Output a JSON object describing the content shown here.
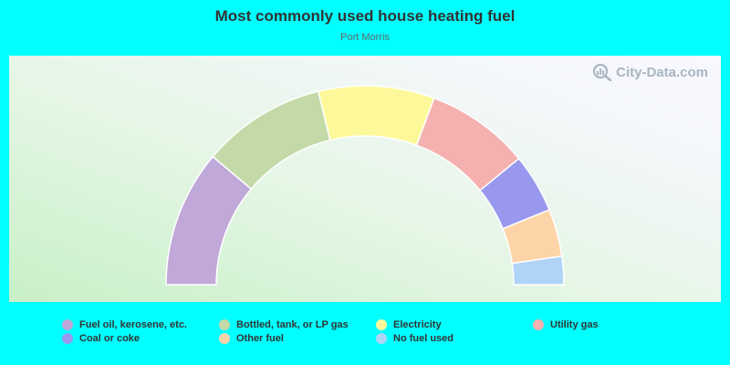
{
  "chart_data": {
    "type": "pie",
    "title": "Most commonly used house heating fuel",
    "subtitle": "Port Morris",
    "categories": [
      "Fuel oil, kerosene, etc.",
      "Bottled, tank, or LP gas",
      "Electricity",
      "Utility gas",
      "Coal or coke",
      "Other fuel",
      "No fuel used"
    ],
    "values": [
      21.4,
      19.4,
      18.1,
      16.2,
      9.2,
      7.4,
      4.4
    ],
    "unit": "%",
    "colors": [
      "#c0a8d8",
      "#c4d9a8",
      "#fdf99a",
      "#f5b0b0",
      "#9898ee",
      "#fdd4a8",
      "#b0d4f6"
    ],
    "legend_position": "bottom"
  },
  "watermark": {
    "text": "City-Data.com",
    "icon": "magnifier-chart-icon"
  }
}
